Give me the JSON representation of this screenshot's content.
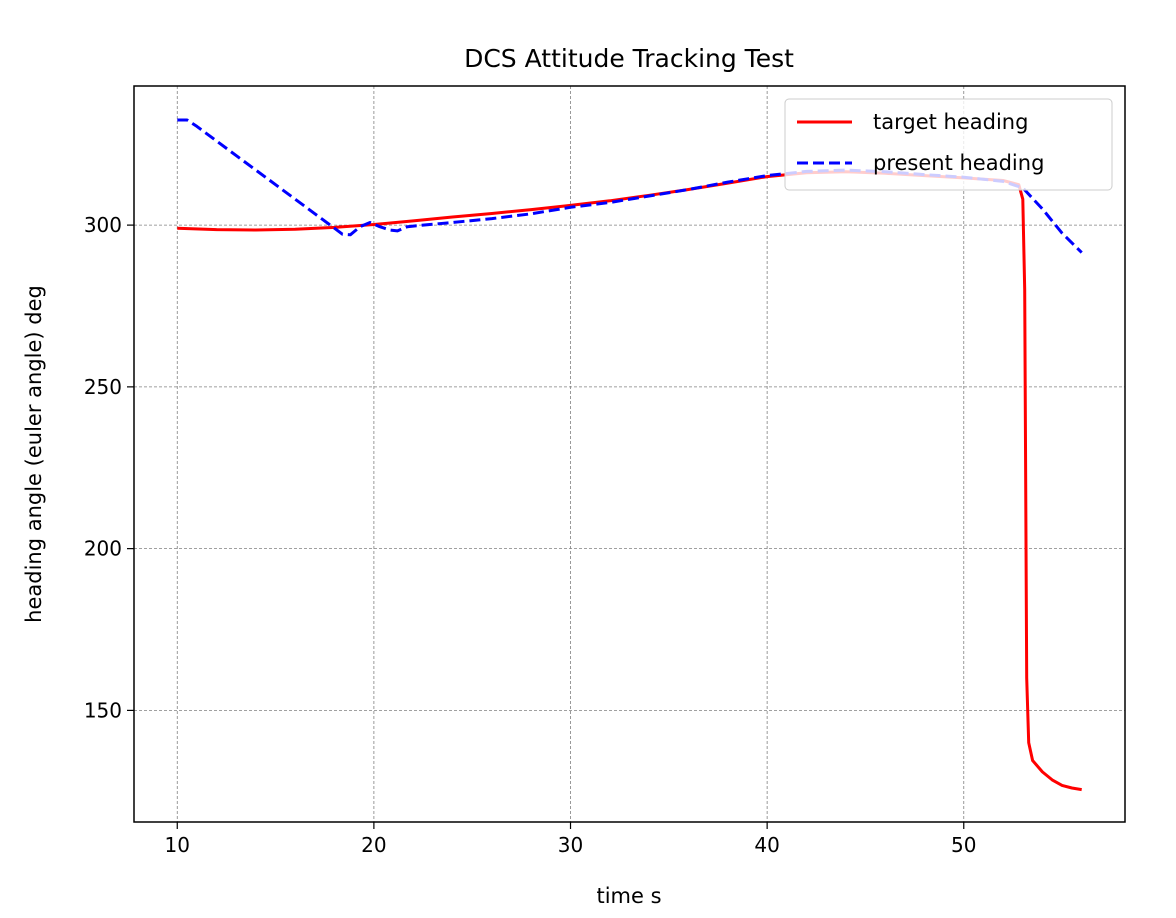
{
  "chart_data": {
    "type": "line",
    "title": "DCS Attitude Tracking Test",
    "xlabel": "time s",
    "ylabel": "heading angle (euler angle) deg",
    "xlim": [
      7.8,
      58.2
    ],
    "ylim": [
      115.5,
      343
    ],
    "xticks": [
      10,
      20,
      30,
      40,
      50
    ],
    "yticks": [
      150,
      200,
      250,
      300
    ],
    "grid": true,
    "legend_position": "top-right",
    "series": [
      {
        "name": "target heading",
        "color": "#ff0000",
        "style": "solid",
        "points": [
          [
            10,
            299
          ],
          [
            12,
            298.6
          ],
          [
            14,
            298.5
          ],
          [
            16,
            298.7
          ],
          [
            18,
            299.3
          ],
          [
            20,
            300.2
          ],
          [
            22,
            301.3
          ],
          [
            24,
            302.5
          ],
          [
            26,
            303.6
          ],
          [
            28,
            304.8
          ],
          [
            30,
            306.1
          ],
          [
            32,
            307.5
          ],
          [
            34,
            309.2
          ],
          [
            36,
            311
          ],
          [
            38,
            313
          ],
          [
            40,
            315
          ],
          [
            42,
            316.2
          ],
          [
            44,
            316.5
          ],
          [
            46,
            316
          ],
          [
            48,
            315.3
          ],
          [
            50,
            314.6
          ],
          [
            52,
            313.8
          ],
          [
            52.8,
            312.5
          ],
          [
            53,
            308
          ],
          [
            53.1,
            280
          ],
          [
            53.15,
            220
          ],
          [
            53.2,
            160
          ],
          [
            53.3,
            140
          ],
          [
            53.5,
            134.5
          ],
          [
            54,
            131
          ],
          [
            54.5,
            128.5
          ],
          [
            55,
            126.8
          ],
          [
            55.5,
            126
          ],
          [
            56,
            125.5
          ]
        ]
      },
      {
        "name": "present heading",
        "color": "#0000ff",
        "style": "dashed",
        "points": [
          [
            10,
            332.5
          ],
          [
            10.5,
            332.5
          ],
          [
            11,
            330.5
          ],
          [
            12,
            326
          ],
          [
            13,
            321.5
          ],
          [
            14,
            317
          ],
          [
            15,
            312.5
          ],
          [
            16,
            308
          ],
          [
            17,
            303.5
          ],
          [
            18,
            299
          ],
          [
            18.4,
            297.2
          ],
          [
            18.8,
            297
          ],
          [
            19.3,
            299.5
          ],
          [
            19.8,
            300.8
          ],
          [
            20.3,
            299.5
          ],
          [
            20.8,
            298.5
          ],
          [
            21.2,
            298.2
          ],
          [
            21.7,
            299.5
          ],
          [
            22.5,
            300
          ],
          [
            24,
            300.8
          ],
          [
            26,
            302
          ],
          [
            28,
            303.5
          ],
          [
            30,
            305.5
          ],
          [
            32,
            307
          ],
          [
            34,
            309
          ],
          [
            36,
            311
          ],
          [
            38,
            313.3
          ],
          [
            40,
            315.3
          ],
          [
            42,
            316.6
          ],
          [
            44,
            317
          ],
          [
            46,
            316.5
          ],
          [
            48,
            315.6
          ],
          [
            50,
            314.8
          ],
          [
            52,
            313.5
          ],
          [
            53,
            311.5
          ],
          [
            54,
            305
          ],
          [
            55,
            297.5
          ],
          [
            56,
            291.5
          ]
        ]
      }
    ]
  }
}
